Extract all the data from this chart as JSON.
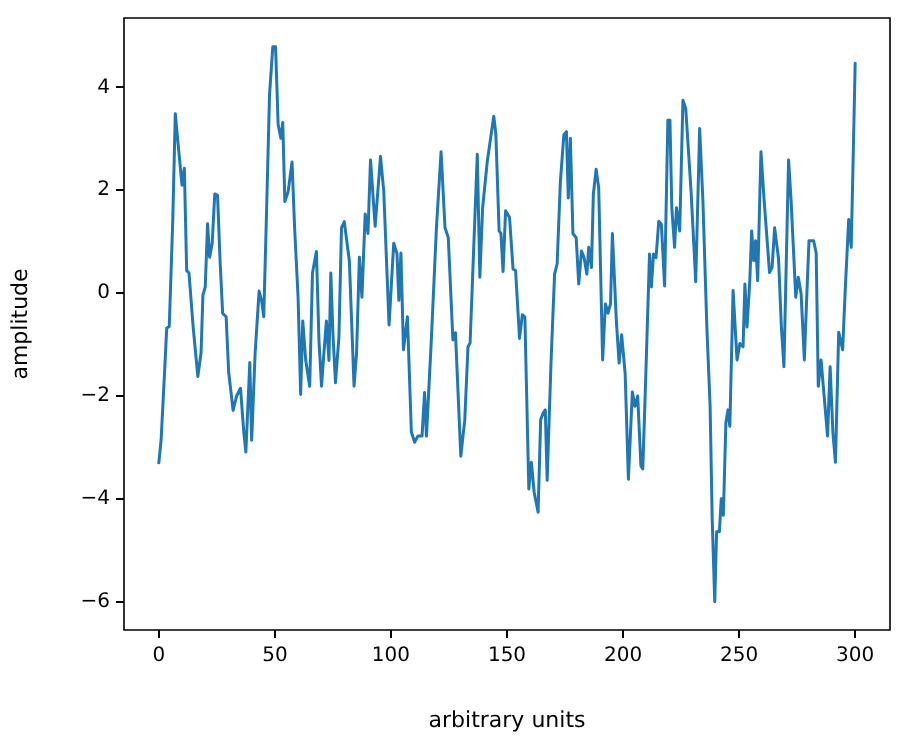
{
  "chart_data": {
    "type": "line",
    "xlabel": "arbitrary units",
    "ylabel": "amplitude",
    "xlim": [
      -15,
      315
    ],
    "xticks": [
      0,
      50,
      100,
      150,
      200,
      250,
      300
    ],
    "ylim": [
      -6.55,
      5.35
    ],
    "yticks": [
      -6,
      -4,
      -2,
      0,
      2,
      4
    ],
    "grid": false,
    "legend": false,
    "marker": "none",
    "line_style": "solid",
    "series": [
      {
        "color": "#1f77b4",
        "x": [
          0,
          1,
          2.6,
          3.4,
          4.5,
          6,
          7.1,
          8.2,
          10,
          11,
          12,
          13,
          14.8,
          16.8,
          18.2,
          19,
          20,
          21,
          21.9,
          23,
          24.1,
          25.3,
          26.4,
          27.5,
          29,
          30.1,
          32,
          33.5,
          35.2,
          36.6,
          37.5,
          39.2,
          40,
          41.5,
          43.2,
          44.3,
          45.2,
          46.3,
          47.7,
          49.1,
          50.3,
          51.4,
          52.6,
          53.4,
          54.3,
          55.7,
          57.4,
          58.5,
          60,
          61.1,
          62,
          63.3,
          65,
          66.2,
          67.9,
          69,
          70.1,
          71,
          72.2,
          73.3,
          74.1,
          75,
          76.1,
          77.6,
          78.7,
          79.9,
          82.1,
          84.1,
          85.2,
          86.4,
          87.5,
          88.9,
          90.1,
          91.2,
          93.2,
          95.5,
          96.9,
          99.2,
          101.2,
          102.6,
          103.4,
          104.3,
          105.4,
          107.1,
          108.8,
          110.2,
          111.6,
          113.4,
          114.5,
          115.3,
          117.4,
          119.6,
          121.6,
          123.3,
          124.7,
          126.7,
          127.8,
          130.1,
          131.8,
          133.2,
          134.1,
          137.2,
          138.3,
          139.5,
          141.5,
          144.3,
          145.2,
          146.6,
          147.4,
          148.3,
          149.4,
          151.1,
          152.6,
          153.7,
          155.4,
          156.6,
          157.7,
          159.4,
          160.5,
          161.7,
          163.4,
          164.5,
          165.6,
          166.5,
          167.3,
          169,
          170.5,
          171.6,
          173,
          174.5,
          175.6,
          176.4,
          177.3,
          178.4,
          179.8,
          180.9,
          182.1,
          183.2,
          184.4,
          185.2,
          186.4,
          187.2,
          188.4,
          189.5,
          191.2,
          192.4,
          193.5,
          194.6,
          195.4,
          197.1,
          198.3,
          199.4,
          200.9,
          202.3,
          204,
          205.1,
          206.3,
          207.7,
          208.5,
          209.7,
          211.4,
          212.2,
          213.1,
          214.2,
          215.4,
          216.5,
          217.9,
          219.3,
          220.2,
          221,
          222.2,
          223,
          224.4,
          225.8,
          227,
          229.3,
          231.3,
          233,
          234.4,
          236.1,
          237.5,
          238.4,
          239.5,
          240.3,
          241.5,
          242.3,
          243.2,
          244.3,
          245.2,
          246,
          247.4,
          249.1,
          250.3,
          251.7,
          252.5,
          253.4,
          254.6,
          255.4,
          256.3,
          257.1,
          258,
          259.4,
          260.8,
          263.1,
          264.2,
          265.3,
          267,
          268.2,
          269.3,
          270.2,
          271.3,
          272.4,
          274.4,
          275.5,
          276.7,
          278.1,
          279.3,
          280.1,
          282.1,
          283.2,
          284.1,
          285.3,
          286.4,
          288.1,
          289.2,
          290.4,
          291.5,
          292.9,
          294.6,
          295.7,
          297.2,
          298.3,
          300
        ],
        "values": [
          -3.3,
          -2.85,
          -1.43,
          -0.68,
          -0.65,
          1.4,
          3.49,
          2.95,
          2.1,
          2.43,
          0.44,
          0.39,
          -0.66,
          -1.62,
          -1.16,
          -0.04,
          0.12,
          1.35,
          0.7,
          0.97,
          1.93,
          1.9,
          0.62,
          -0.39,
          -0.46,
          -1.54,
          -2.28,
          -2.0,
          -1.85,
          -2.7,
          -3.09,
          -1.35,
          -2.86,
          -1.16,
          0.04,
          -0.15,
          -0.46,
          1.39,
          3.86,
          4.79,
          4.79,
          3.28,
          3.01,
          3.32,
          1.78,
          1.97,
          2.55,
          1.27,
          -0.08,
          -1.97,
          -0.54,
          -1.31,
          -1.81,
          0.39,
          0.81,
          -0.93,
          -1.81,
          -1.24,
          -0.54,
          -1.31,
          0.39,
          -0.77,
          -1.74,
          -0.85,
          1.27,
          1.39,
          0.62,
          -1.81,
          -1.16,
          0.7,
          -0.08,
          1.54,
          1.16,
          2.59,
          1.3,
          2.66,
          1.98,
          -0.62,
          0.97,
          0.77,
          -0.14,
          0.78,
          -1.1,
          -0.46,
          -2.7,
          -2.9,
          -2.78,
          -2.78,
          -1.93,
          -2.78,
          -0.91,
          1.27,
          2.75,
          1.27,
          1.08,
          -0.91,
          -0.77,
          -3.17,
          -2.47,
          -1.04,
          -0.97,
          2.7,
          0.31,
          1.66,
          2.56,
          3.44,
          3.09,
          1.21,
          1.16,
          0.42,
          1.6,
          1.47,
          0.47,
          0.44,
          -0.88,
          -0.42,
          -0.46,
          -3.81,
          -3.29,
          -3.87,
          -4.26,
          -2.46,
          -2.33,
          -2.27,
          -3.64,
          -1.3,
          0.37,
          0.57,
          2.17,
          3.08,
          3.14,
          1.85,
          3.01,
          1.16,
          1.08,
          0.18,
          0.82,
          0.69,
          0.37,
          0.89,
          0.5,
          1.92,
          2.41,
          2.05,
          -1.3,
          -0.21,
          -0.39,
          -0.21,
          1.16,
          -0.53,
          -1.36,
          -0.81,
          -1.56,
          -3.62,
          -1.92,
          -2.2,
          -2.0,
          -3.36,
          -3.42,
          -1.74,
          0.76,
          0.12,
          0.76,
          0.69,
          1.4,
          1.34,
          0.14,
          3.36,
          3.36,
          1.66,
          0.89,
          1.66,
          1.21,
          3.75,
          3.59,
          1.98,
          0.22,
          3.2,
          1.79,
          -0.66,
          -2.2,
          -4.39,
          -6.0,
          -4.64,
          -4.64,
          -4.0,
          -4.32,
          -2.52,
          -2.27,
          -2.59,
          0.05,
          -1.3,
          -0.98,
          -1.04,
          0.18,
          -0.66,
          0.24,
          1.21,
          0.63,
          1.02,
          0.24,
          2.75,
          1.79,
          0.4,
          0.5,
          1.27,
          0.66,
          -0.66,
          -1.43,
          0.37,
          2.59,
          1.79,
          -0.08,
          0.31,
          -0.01,
          -1.3,
          0.12,
          1.02,
          1.02,
          0.78,
          -1.81,
          -1.3,
          -1.88,
          -2.78,
          -1.43,
          -2.71,
          -3.29,
          -0.76,
          -1.1,
          0.05,
          1.43,
          0.89,
          4.47
        ]
      }
    ]
  }
}
